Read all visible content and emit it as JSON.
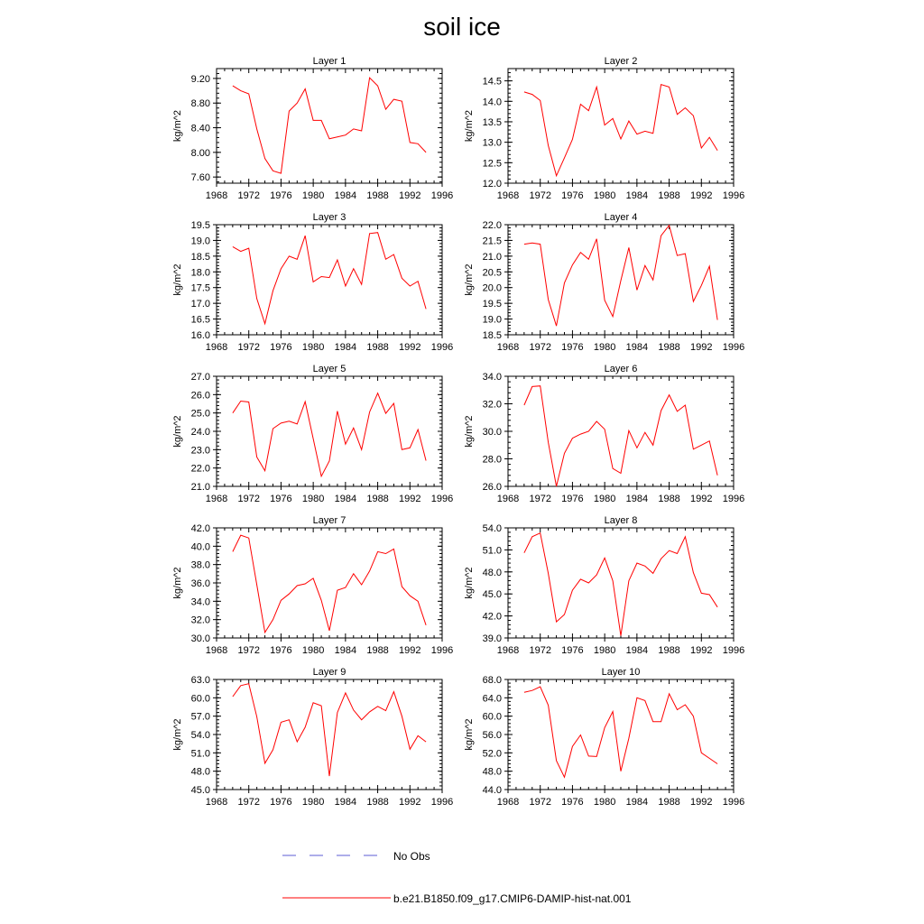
{
  "title": "soil ice",
  "colors": {
    "series": "#ff0000",
    "no_obs": "#5b5bd6",
    "axis": "#000000"
  },
  "legend": [
    {
      "label": "No Obs",
      "style": "dashed",
      "color": "#5b5bd6"
    },
    {
      "label": "b.e21.B1850.f09_g17.CMIP6-DAMIP-hist-nat.001",
      "style": "solid",
      "color": "#ff0000"
    }
  ],
  "chart_data": [
    {
      "type": "line",
      "title": "Layer 1",
      "ylabel": "kg/m^2",
      "xlim": [
        1968,
        1996
      ],
      "ylim": [
        7.5,
        9.36
      ],
      "xticks": [
        1968,
        1972,
        1976,
        1980,
        1984,
        1988,
        1992,
        1996
      ],
      "yticks": [
        7.6,
        8.0,
        8.4,
        8.8,
        9.2
      ],
      "yticklabels": [
        "7.60",
        "8.00",
        "8.40",
        "8.80",
        "9.20"
      ],
      "x": [
        1970,
        1971,
        1972,
        1973,
        1974,
        1975,
        1976,
        1977,
        1978,
        1979,
        1980,
        1981,
        1982,
        1983,
        1984,
        1985,
        1986,
        1987,
        1988,
        1989,
        1990,
        1991,
        1992,
        1993,
        1994
      ],
      "series": [
        {
          "name": "b.e21.B1850.f09_g17.CMIP6-DAMIP-hist-nat.001",
          "values": [
            9.08,
            9.0,
            8.95,
            8.38,
            7.9,
            7.7,
            7.66,
            8.67,
            8.8,
            9.03,
            8.52,
            8.52,
            8.22,
            8.25,
            8.28,
            8.38,
            8.35,
            9.21,
            9.08,
            8.7,
            8.86,
            8.83,
            8.16,
            8.14,
            8.0
          ]
        }
      ]
    },
    {
      "type": "line",
      "title": "Layer 2",
      "ylabel": "kg/m^2",
      "xlim": [
        1968,
        1996
      ],
      "ylim": [
        12.0,
        14.8
      ],
      "xticks": [
        1968,
        1972,
        1976,
        1980,
        1984,
        1988,
        1992,
        1996
      ],
      "yticks": [
        12.0,
        12.5,
        13.0,
        13.5,
        14.0,
        14.5
      ],
      "yticklabels": [
        "12.0",
        "12.5",
        "13.0",
        "13.5",
        "14.0",
        "14.5"
      ],
      "x": [
        1970,
        1971,
        1972,
        1973,
        1974,
        1975,
        1976,
        1977,
        1978,
        1979,
        1980,
        1981,
        1982,
        1983,
        1984,
        1985,
        1986,
        1987,
        1988,
        1989,
        1990,
        1991,
        1992,
        1993,
        1994
      ],
      "series": [
        {
          "name": "b.e21.B1850.f09_g17.CMIP6-DAMIP-hist-nat.001",
          "values": [
            14.23,
            14.17,
            14.02,
            12.92,
            12.18,
            12.62,
            13.07,
            13.93,
            13.77,
            14.35,
            13.42,
            13.58,
            13.08,
            13.52,
            13.2,
            13.27,
            13.22,
            14.41,
            14.35,
            13.68,
            13.84,
            13.65,
            12.86,
            13.12,
            12.8
          ]
        }
      ]
    },
    {
      "type": "line",
      "title": "Layer 3",
      "ylabel": "kg/m^2",
      "xlim": [
        1968,
        1996
      ],
      "ylim": [
        16.0,
        19.5
      ],
      "xticks": [
        1968,
        1972,
        1976,
        1980,
        1984,
        1988,
        1992,
        1996
      ],
      "yticks": [
        16.0,
        16.5,
        17.0,
        17.5,
        18.0,
        18.5,
        19.0,
        19.5
      ],
      "yticklabels": [
        "16.0",
        "16.5",
        "17.0",
        "17.5",
        "18.0",
        "18.5",
        "19.0",
        "19.5"
      ],
      "x": [
        1970,
        1971,
        1972,
        1973,
        1974,
        1975,
        1976,
        1977,
        1978,
        1979,
        1980,
        1981,
        1982,
        1983,
        1984,
        1985,
        1986,
        1987,
        1988,
        1989,
        1990,
        1991,
        1992,
        1993,
        1994
      ],
      "series": [
        {
          "name": "b.e21.B1850.f09_g17.CMIP6-DAMIP-hist-nat.001",
          "values": [
            18.8,
            18.65,
            18.75,
            17.15,
            16.35,
            17.4,
            18.1,
            18.5,
            18.4,
            19.15,
            17.68,
            17.85,
            17.82,
            18.38,
            17.55,
            18.1,
            17.6,
            19.22,
            19.25,
            18.4,
            18.55,
            17.8,
            17.55,
            17.7,
            16.82
          ]
        }
      ]
    },
    {
      "type": "line",
      "title": "Layer 4",
      "ylabel": "kg/m^2",
      "xlim": [
        1968,
        1996
      ],
      "ylim": [
        18.5,
        22.0
      ],
      "xticks": [
        1968,
        1972,
        1976,
        1980,
        1984,
        1988,
        1992,
        1996
      ],
      "yticks": [
        18.5,
        19.0,
        19.5,
        20.0,
        20.5,
        21.0,
        21.5,
        22.0
      ],
      "yticklabels": [
        "18.5",
        "19.0",
        "19.5",
        "20.0",
        "20.5",
        "21.0",
        "21.5",
        "22.0"
      ],
      "x": [
        1970,
        1971,
        1972,
        1973,
        1974,
        1975,
        1976,
        1977,
        1978,
        1979,
        1980,
        1981,
        1982,
        1983,
        1984,
        1985,
        1986,
        1987,
        1988,
        1989,
        1990,
        1991,
        1992,
        1993,
        1994
      ],
      "series": [
        {
          "name": "b.e21.B1850.f09_g17.CMIP6-DAMIP-hist-nat.001",
          "values": [
            21.38,
            21.42,
            21.38,
            19.62,
            18.78,
            20.15,
            20.72,
            21.12,
            20.9,
            21.55,
            19.6,
            19.08,
            20.22,
            21.27,
            19.92,
            20.7,
            20.24,
            21.65,
            21.98,
            21.02,
            21.08,
            19.56,
            20.07,
            20.68,
            18.97
          ]
        }
      ]
    },
    {
      "type": "line",
      "title": "Layer 5",
      "ylabel": "kg/m^2",
      "xlim": [
        1968,
        1996
      ],
      "ylim": [
        21.0,
        27.0
      ],
      "xticks": [
        1968,
        1972,
        1976,
        1980,
        1984,
        1988,
        1992,
        1996
      ],
      "yticks": [
        21.0,
        22.0,
        23.0,
        24.0,
        25.0,
        26.0,
        27.0
      ],
      "yticklabels": [
        "21.0",
        "22.0",
        "23.0",
        "24.0",
        "25.0",
        "26.0",
        "27.0"
      ],
      "x": [
        1970,
        1971,
        1972,
        1973,
        1974,
        1975,
        1976,
        1977,
        1978,
        1979,
        1980,
        1981,
        1982,
        1983,
        1984,
        1985,
        1986,
        1987,
        1988,
        1989,
        1990,
        1991,
        1992,
        1993,
        1994
      ],
      "series": [
        {
          "name": "b.e21.B1850.f09_g17.CMIP6-DAMIP-hist-nat.001",
          "values": [
            25.0,
            25.65,
            25.6,
            22.6,
            21.85,
            24.15,
            24.45,
            24.55,
            24.4,
            25.62,
            23.6,
            21.55,
            22.38,
            25.1,
            23.3,
            24.18,
            23.0,
            25.05,
            26.08,
            24.98,
            25.52,
            23.0,
            23.1,
            24.1,
            22.4
          ]
        }
      ]
    },
    {
      "type": "line",
      "title": "Layer 6",
      "ylabel": "kg/m^2",
      "xlim": [
        1968,
        1996
      ],
      "ylim": [
        26.0,
        34.0
      ],
      "xticks": [
        1968,
        1972,
        1976,
        1980,
        1984,
        1988,
        1992,
        1996
      ],
      "yticks": [
        26.0,
        28.0,
        30.0,
        32.0,
        34.0
      ],
      "yticklabels": [
        "26.0",
        "28.0",
        "30.0",
        "32.0",
        "34.0"
      ],
      "x": [
        1970,
        1971,
        1972,
        1973,
        1974,
        1975,
        1976,
        1977,
        1978,
        1979,
        1980,
        1981,
        1982,
        1983,
        1984,
        1985,
        1986,
        1987,
        1988,
        1989,
        1990,
        1991,
        1992,
        1993,
        1994
      ],
      "series": [
        {
          "name": "b.e21.B1850.f09_g17.CMIP6-DAMIP-hist-nat.001",
          "values": [
            31.9,
            33.25,
            33.3,
            29.2,
            26.0,
            28.4,
            29.5,
            29.8,
            30.0,
            30.72,
            30.15,
            27.3,
            26.95,
            30.05,
            28.8,
            29.92,
            29.0,
            31.5,
            32.65,
            31.45,
            31.9,
            28.7,
            29.0,
            29.3,
            26.8
          ]
        }
      ]
    },
    {
      "type": "line",
      "title": "Layer 7",
      "ylabel": "kg/m^2",
      "xlim": [
        1968,
        1996
      ],
      "ylim": [
        30.0,
        42.0
      ],
      "xticks": [
        1968,
        1972,
        1976,
        1980,
        1984,
        1988,
        1992,
        1996
      ],
      "yticks": [
        30.0,
        32.0,
        34.0,
        36.0,
        38.0,
        40.0,
        42.0
      ],
      "yticklabels": [
        "30.0",
        "32.0",
        "34.0",
        "36.0",
        "38.0",
        "40.0",
        "42.0"
      ],
      "x": [
        1970,
        1971,
        1972,
        1973,
        1974,
        1975,
        1976,
        1977,
        1978,
        1979,
        1980,
        1981,
        1982,
        1983,
        1984,
        1985,
        1986,
        1987,
        1988,
        1989,
        1990,
        1991,
        1992,
        1993,
        1994
      ],
      "series": [
        {
          "name": "b.e21.B1850.f09_g17.CMIP6-DAMIP-hist-nat.001",
          "values": [
            39.4,
            41.2,
            40.9,
            35.8,
            30.6,
            32.0,
            34.1,
            34.8,
            35.7,
            35.9,
            36.5,
            34.1,
            30.8,
            35.2,
            35.5,
            37.0,
            35.8,
            37.3,
            39.4,
            39.2,
            39.7,
            35.6,
            34.6,
            34.0,
            31.4
          ]
        }
      ]
    },
    {
      "type": "line",
      "title": "Layer 8",
      "ylabel": "kg/m^2",
      "xlim": [
        1968,
        1996
      ],
      "ylim": [
        39.0,
        54.0
      ],
      "xticks": [
        1968,
        1972,
        1976,
        1980,
        1984,
        1988,
        1992,
        1996
      ],
      "yticks": [
        39.0,
        42.0,
        45.0,
        48.0,
        51.0,
        54.0
      ],
      "yticklabels": [
        "39.0",
        "42.0",
        "45.0",
        "48.0",
        "51.0",
        "54.0"
      ],
      "x": [
        1970,
        1971,
        1972,
        1973,
        1974,
        1975,
        1976,
        1977,
        1978,
        1979,
        1980,
        1981,
        1982,
        1983,
        1984,
        1985,
        1986,
        1987,
        1988,
        1989,
        1990,
        1991,
        1992,
        1993,
        1994
      ],
      "series": [
        {
          "name": "b.e21.B1850.f09_g17.CMIP6-DAMIP-hist-nat.001",
          "values": [
            50.6,
            52.8,
            53.3,
            47.8,
            41.2,
            42.2,
            45.5,
            47.0,
            46.5,
            47.6,
            49.9,
            46.8,
            39.3,
            46.8,
            49.2,
            48.8,
            47.8,
            49.8,
            50.9,
            50.5,
            52.8,
            47.9,
            45.1,
            44.9,
            43.2
          ]
        }
      ]
    },
    {
      "type": "line",
      "title": "Layer 9",
      "ylabel": "kg/m^2",
      "xlim": [
        1968,
        1996
      ],
      "ylim": [
        45.0,
        63.0
      ],
      "xticks": [
        1968,
        1972,
        1976,
        1980,
        1984,
        1988,
        1992,
        1996
      ],
      "yticks": [
        45.0,
        48.0,
        51.0,
        54.0,
        57.0,
        60.0,
        63.0
      ],
      "yticklabels": [
        "45.0",
        "48.0",
        "51.0",
        "54.0",
        "57.0",
        "60.0",
        "63.0"
      ],
      "x": [
        1970,
        1971,
        1972,
        1973,
        1974,
        1975,
        1976,
        1977,
        1978,
        1979,
        1980,
        1981,
        1982,
        1983,
        1984,
        1985,
        1986,
        1987,
        1988,
        1989,
        1990,
        1991,
        1992,
        1993,
        1994
      ],
      "series": [
        {
          "name": "b.e21.B1850.f09_g17.CMIP6-DAMIP-hist-nat.001",
          "values": [
            60.2,
            62.0,
            62.3,
            56.9,
            49.3,
            51.5,
            56.0,
            56.4,
            52.8,
            55.2,
            59.2,
            58.7,
            47.2,
            57.6,
            60.8,
            58.0,
            56.4,
            57.7,
            58.6,
            57.9,
            61.0,
            57.0,
            51.6,
            53.8,
            52.8
          ]
        }
      ]
    },
    {
      "type": "line",
      "title": "Layer 10",
      "ylabel": "kg/m^2",
      "xlim": [
        1968,
        1996
      ],
      "ylim": [
        44.0,
        68.0
      ],
      "xticks": [
        1968,
        1972,
        1976,
        1980,
        1984,
        1988,
        1992,
        1996
      ],
      "yticks": [
        44.0,
        48.0,
        52.0,
        56.0,
        60.0,
        64.0,
        68.0
      ],
      "yticklabels": [
        "44.0",
        "48.0",
        "52.0",
        "56.0",
        "60.0",
        "64.0",
        "68.0"
      ],
      "x": [
        1970,
        1971,
        1972,
        1973,
        1974,
        1975,
        1976,
        1977,
        1978,
        1979,
        1980,
        1981,
        1982,
        1983,
        1984,
        1985,
        1986,
        1987,
        1988,
        1989,
        1990,
        1991,
        1992,
        1993,
        1994
      ],
      "series": [
        {
          "name": "b.e21.B1850.f09_g17.CMIP6-DAMIP-hist-nat.001",
          "values": [
            65.2,
            65.6,
            66.4,
            62.4,
            50.3,
            46.7,
            53.4,
            55.9,
            51.3,
            51.2,
            57.5,
            61.0,
            48.0,
            55.2,
            64.0,
            63.4,
            58.8,
            58.8,
            64.9,
            61.4,
            62.5,
            60.0,
            52.0,
            50.8,
            49.6
          ]
        }
      ]
    }
  ]
}
